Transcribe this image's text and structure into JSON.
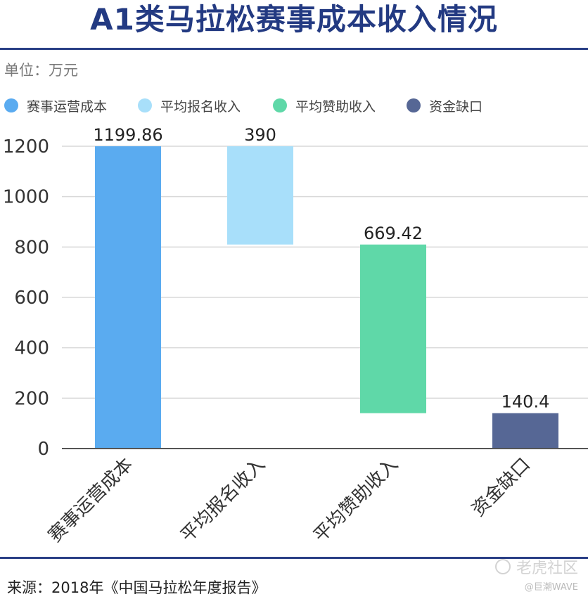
{
  "title": "A1类马拉松赛事成本收入情况",
  "unit": "单位：万元",
  "colors": {
    "series": [
      "#5aabf0",
      "#a8dffa",
      "#5fd8a8",
      "#566795"
    ],
    "title": "#233a82",
    "rule": "#2a3f86"
  },
  "legend": [
    {
      "label": "赛事运营成本"
    },
    {
      "label": "平均报名收入"
    },
    {
      "label": "平均赞助收入"
    },
    {
      "label": "资金缺口"
    }
  ],
  "chart_data": {
    "type": "bar",
    "subtype": "waterfall",
    "categories": [
      "赛事运营成本",
      "平均报名收入",
      "平均赞助收入",
      "资金缺口"
    ],
    "values": [
      1199.86,
      390,
      669.42,
      140.4
    ],
    "ranges": [
      [
        0,
        1199.86
      ],
      [
        809.86,
        1199.86
      ],
      [
        140.44,
        809.86
      ],
      [
        0,
        140.4
      ]
    ],
    "data_labels": [
      "1199.86",
      "390",
      "669.42",
      "140.4"
    ],
    "y_ticks": [
      0,
      200,
      400,
      600,
      800,
      1000,
      1200
    ],
    "ylim": [
      0,
      1200
    ],
    "grid": true,
    "legend_position": "top"
  },
  "source": "来源：2018年《中国马拉松年度报告》",
  "watermark": {
    "main": "老虎社区",
    "sub": "@巨潮WAVE"
  }
}
